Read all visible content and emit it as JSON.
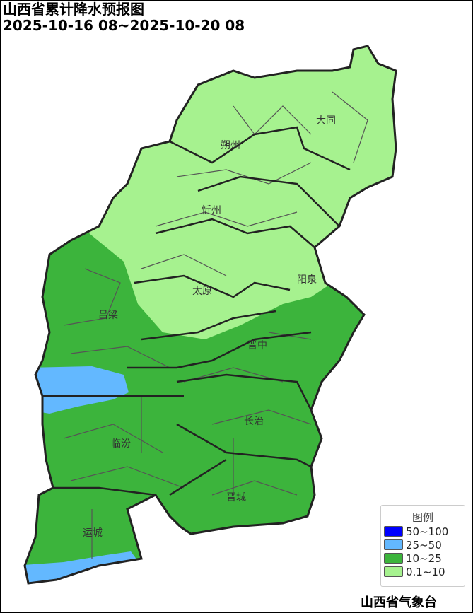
{
  "title": "山西省累计降水预报图",
  "period": "2025-10-16 08~2025-10-20 08",
  "cities": [
    "大同",
    "朔州",
    "忻州",
    "阳泉",
    "太原",
    "吕梁",
    "晋中",
    "长治",
    "临汾",
    "晋城",
    "运城"
  ],
  "legend": {
    "title": "图例",
    "items": [
      {
        "label": "50~100",
        "color": "#0000ff"
      },
      {
        "label": "25~50",
        "color": "#63b8ff"
      },
      {
        "label": "10~25",
        "color": "#3cb43c"
      },
      {
        "label": "0.1~10",
        "color": "#a6f28f"
      }
    ]
  },
  "credit": "山西省气象台"
}
